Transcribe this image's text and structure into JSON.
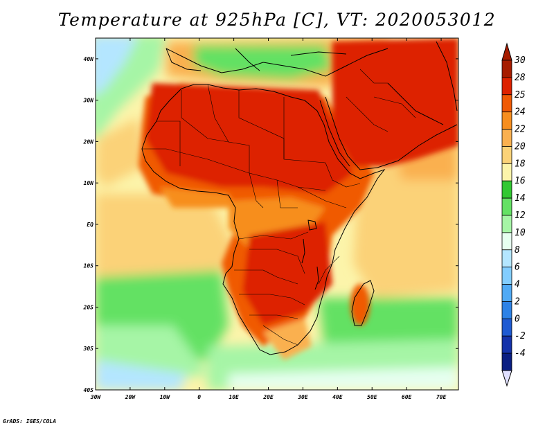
{
  "title": "Temperature at 925hPa [C], VT: 2020053012",
  "credit": "GrADS: IGES/COLA",
  "map": {
    "projection": "lat-lon",
    "lon_range": [
      -30,
      75
    ],
    "lat_range": [
      -40,
      45
    ],
    "lon_ticks": [
      {
        "value": -30,
        "label": "30W"
      },
      {
        "value": -20,
        "label": "20W"
      },
      {
        "value": -10,
        "label": "10W"
      },
      {
        "value": 0,
        "label": "0"
      },
      {
        "value": 10,
        "label": "10E"
      },
      {
        "value": 20,
        "label": "20E"
      },
      {
        "value": 30,
        "label": "30E"
      },
      {
        "value": 40,
        "label": "40E"
      },
      {
        "value": 50,
        "label": "50E"
      },
      {
        "value": 60,
        "label": "60E"
      },
      {
        "value": 70,
        "label": "70E"
      }
    ],
    "lat_ticks": [
      {
        "value": 40,
        "label": "40N"
      },
      {
        "value": 30,
        "label": "30N"
      },
      {
        "value": 20,
        "label": "20N"
      },
      {
        "value": 10,
        "label": "10N"
      },
      {
        "value": 0,
        "label": "EQ"
      },
      {
        "value": -10,
        "label": "10S"
      },
      {
        "value": -20,
        "label": "20S"
      },
      {
        "value": -30,
        "label": "30S"
      },
      {
        "value": -40,
        "label": "40S"
      }
    ],
    "variable": "925hPa temperature",
    "units": "C"
  },
  "colorbar": {
    "orientation": "vertical",
    "position": "right",
    "levels": [
      {
        "label": "30",
        "color": "#a61c00"
      },
      {
        "label": "28",
        "color": "#dd2200"
      },
      {
        "label": "25",
        "color": "#f05a05"
      },
      {
        "label": "24",
        "color": "#f78e1e"
      },
      {
        "label": "22",
        "color": "#fab050"
      },
      {
        "label": "20",
        "color": "#fbd278"
      },
      {
        "label": "18",
        "color": "#fcf4aa"
      },
      {
        "label": "16",
        "color": "#32c832"
      },
      {
        "label": "14",
        "color": "#64e164"
      },
      {
        "label": "12",
        "color": "#a6f5a6"
      },
      {
        "label": "10",
        "color": "#e6fff0"
      },
      {
        "label": "8",
        "color": "#b4e6ff"
      },
      {
        "label": "6",
        "color": "#82cdff"
      },
      {
        "label": "4",
        "color": "#50aaf5"
      },
      {
        "label": "2",
        "color": "#2d82e6"
      },
      {
        "label": "0",
        "color": "#1e5ad2"
      },
      {
        "label": "-2",
        "color": "#1432aa"
      },
      {
        "label": "-4",
        "color": "#0a1e82"
      }
    ],
    "over_color": "#a61c00",
    "under_color": "#e0e0ff"
  }
}
